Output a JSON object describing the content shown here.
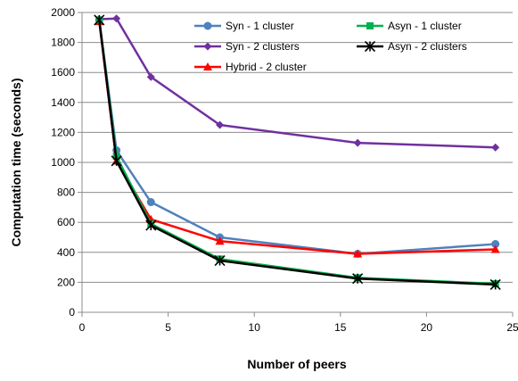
{
  "chart_data": {
    "type": "line",
    "title": "",
    "xlabel": "Number of peers",
    "ylabel": "Computation time (seconds)",
    "xlim": [
      0,
      25
    ],
    "ylim": [
      0,
      2000
    ],
    "xticks": [
      0,
      5,
      10,
      15,
      20,
      25
    ],
    "yticks": [
      0,
      200,
      400,
      600,
      800,
      1000,
      1200,
      1400,
      1600,
      1800,
      2000
    ],
    "grid": "horizontal",
    "legend_position": "top-right",
    "series": [
      {
        "name": "Syn - 1 cluster",
        "color": "#4F81BD",
        "marker": "circle",
        "x": [
          1,
          2,
          4,
          8,
          16,
          24
        ],
        "y": [
          1950,
          1080,
          735,
          500,
          390,
          455
        ]
      },
      {
        "name": "Syn - 2 clusters",
        "color": "#7030A0",
        "marker": "diamond",
        "x": [
          1,
          2,
          4,
          8,
          16,
          24
        ],
        "y": [
          1955,
          1960,
          1570,
          1250,
          1130,
          1100
        ]
      },
      {
        "name": "Hybrid - 2 cluster",
        "color": "#FF0000",
        "marker": "triangle",
        "x": [
          1,
          2,
          4,
          8,
          16,
          24
        ],
        "y": [
          1940,
          1010,
          620,
          475,
          390,
          420
        ]
      },
      {
        "name": "Asyn - 1 cluster",
        "color": "#00B050",
        "marker": "square",
        "x": [
          1,
          2,
          4,
          8,
          16,
          24
        ],
        "y": [
          1950,
          1040,
          590,
          355,
          230,
          190
        ]
      },
      {
        "name": "Asyn - 2 clusters",
        "color": "#000000",
        "marker": "asterisk",
        "x": [
          1,
          2,
          4,
          8,
          16,
          24
        ],
        "y": [
          1950,
          1010,
          580,
          345,
          225,
          185
        ]
      }
    ]
  }
}
